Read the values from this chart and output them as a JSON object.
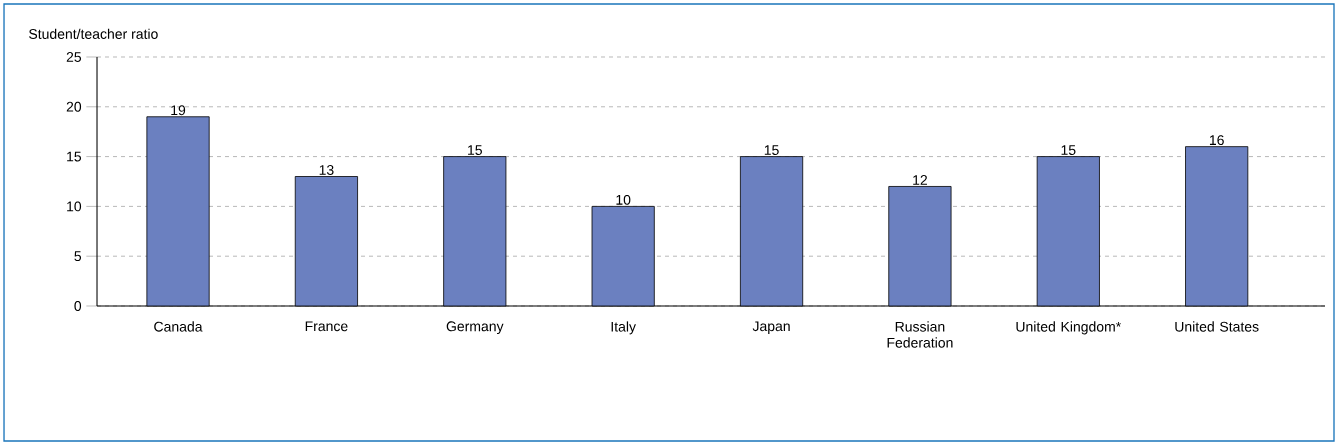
{
  "chart_data": {
    "type": "bar",
    "ylabel": "Student/teacher ratio",
    "categories": [
      "Canada",
      "France",
      "Germany",
      "Italy",
      "Japan",
      "Russian Federation",
      "United Kingdom*",
      "United States"
    ],
    "values": [
      19,
      13,
      15,
      10,
      15,
      12,
      15,
      16
    ],
    "color": "#6b80c0",
    "ylim": [
      0,
      25
    ],
    "yticks": [
      0,
      5,
      10,
      15,
      20,
      25
    ],
    "grid": "y",
    "data_labels": true
  }
}
